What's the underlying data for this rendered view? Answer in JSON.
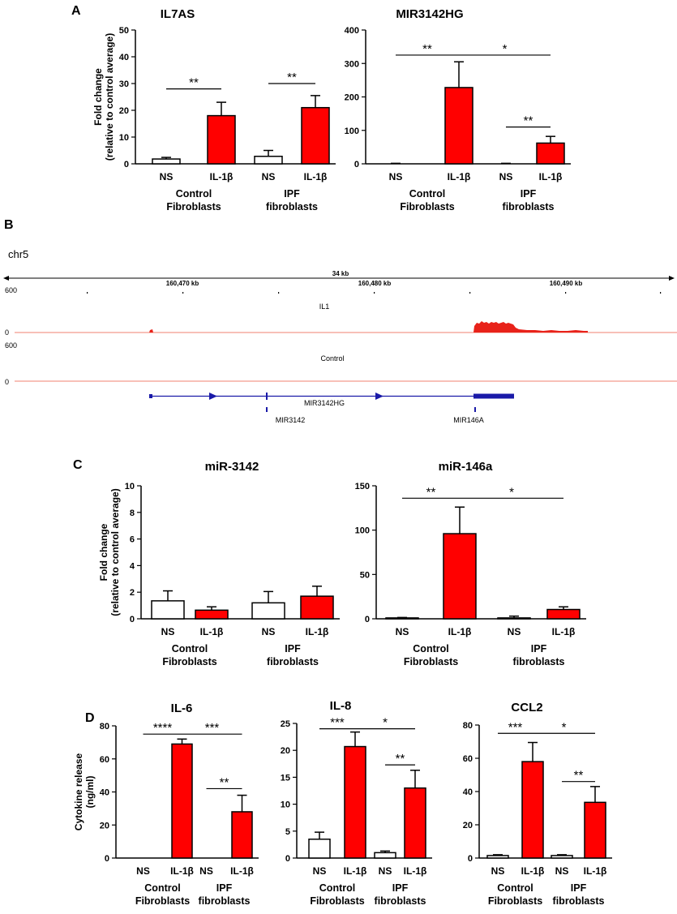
{
  "panel_labels": {
    "a": "A",
    "b": "B",
    "c": "C",
    "d": "D"
  },
  "colors": {
    "il1b_bar": "#ff0000",
    "ns_bar": "#ffffff",
    "genome_track": "#e8221a",
    "baseline": "#f08070",
    "gene": "#1a1aa8"
  },
  "chart_data": [
    {
      "id": "il7as",
      "type": "bar",
      "title": "IL7AS",
      "ylabel": "Fold change (relative to control average)",
      "ylim": [
        0,
        50
      ],
      "yticks": [
        "0",
        "10",
        "20",
        "30",
        "40",
        "50"
      ],
      "categories": [
        "NS",
        "IL-1β",
        "NS",
        "IL-1β"
      ],
      "groups": [
        "Control Fibroblasts",
        "IPF fibroblasts"
      ],
      "group_lines": [
        [
          "Control",
          "Fibroblasts"
        ],
        [
          "IPF",
          "fibroblasts"
        ]
      ],
      "values": [
        1.8,
        18,
        2.8,
        21
      ],
      "errors": [
        0.6,
        5,
        2.2,
        4.5
      ],
      "significance": [
        {
          "from": 0,
          "to": 1,
          "label": "**",
          "level": 28
        },
        {
          "from": 2,
          "to": 3,
          "label": "**",
          "level": 30
        }
      ]
    },
    {
      "id": "mir3142hg",
      "type": "bar",
      "title": "MIR3142HG",
      "ylabel": "",
      "ylim": [
        0,
        400
      ],
      "yticks": [
        "0",
        "100",
        "200",
        "300",
        "400"
      ],
      "categories": [
        "NS",
        "IL-1β",
        "NS",
        "IL-1β"
      ],
      "groups": [
        "Control Fibroblasts",
        "IPF fibroblasts"
      ],
      "group_lines": [
        [
          "Control",
          "Fibroblasts"
        ],
        [
          "IPF",
          "fibroblasts"
        ]
      ],
      "values": [
        1,
        228,
        1,
        62
      ],
      "errors": [
        0.5,
        77,
        0.5,
        20
      ],
      "significance": [
        {
          "from": 0,
          "to": 1,
          "label": "**",
          "level": 325
        },
        {
          "from": 1,
          "to": 3,
          "label": "*",
          "level": 325
        },
        {
          "from": 2,
          "to": 3,
          "label": "**",
          "level": 110
        }
      ]
    },
    {
      "id": "mir3142",
      "type": "bar",
      "title": "miR-3142",
      "ylabel": "Fold change (relative to control average)",
      "ylim": [
        0,
        10
      ],
      "yticks": [
        "0",
        "2",
        "4",
        "6",
        "8",
        "10"
      ],
      "categories": [
        "NS",
        "IL-1β",
        "NS",
        "IL-1β"
      ],
      "groups": [
        "Control Fibroblasts",
        "IPF fibroblasts"
      ],
      "group_lines": [
        [
          "Control",
          "Fibroblasts"
        ],
        [
          "IPF",
          "fibroblasts"
        ]
      ],
      "values": [
        1.35,
        0.65,
        1.2,
        1.7
      ],
      "errors": [
        0.75,
        0.25,
        0.85,
        0.75
      ],
      "significance": []
    },
    {
      "id": "mir146a",
      "type": "bar",
      "title": "miR-146a",
      "ylabel": "",
      "ylim": [
        0,
        150
      ],
      "yticks": [
        "0",
        "50",
        "100",
        "150"
      ],
      "categories": [
        "NS",
        "IL-1β",
        "NS",
        "IL-1β"
      ],
      "groups": [
        "Control Fibroblasts",
        "IPF fibroblasts"
      ],
      "group_lines": [
        [
          "Control",
          "Fibroblasts"
        ],
        [
          "IPF",
          "fibroblasts"
        ]
      ],
      "values": [
        1,
        96,
        1,
        10.5
      ],
      "errors": [
        0.5,
        30,
        2,
        3
      ],
      "significance": [
        {
          "from": 0,
          "to": 1,
          "label": "**",
          "level": 136
        },
        {
          "from": 1,
          "to": 3,
          "label": "*",
          "level": 136
        }
      ]
    },
    {
      "id": "il6",
      "type": "bar",
      "title": "IL-6",
      "ylabel": "Cytokine release (ng/ml)",
      "ylim": [
        0,
        80
      ],
      "yticks": [
        "0",
        "20",
        "40",
        "60",
        "80"
      ],
      "categories": [
        "NS",
        "IL-1β",
        "NS",
        "IL-1β"
      ],
      "groups": [
        "Control Fibroblasts",
        "IPF fibroblasts"
      ],
      "group_lines": [
        [
          "Control",
          "Fibroblasts"
        ],
        [
          "IPF",
          "fibroblasts"
        ]
      ],
      "values": [
        0,
        69,
        0,
        28
      ],
      "errors": [
        0,
        3,
        0,
        10
      ],
      "significance": [
        {
          "from": 0,
          "to": 1,
          "label": "****",
          "level": 75
        },
        {
          "from": 1,
          "to": 3,
          "label": "***",
          "level": 75
        },
        {
          "from": 2,
          "to": 3,
          "label": "**",
          "level": 42
        }
      ]
    },
    {
      "id": "il8",
      "type": "bar",
      "title": "IL-8",
      "ylabel": "",
      "ylim": [
        0,
        25
      ],
      "yticks": [
        "0",
        "5",
        "10",
        "15",
        "20",
        "25"
      ],
      "categories": [
        "NS",
        "IL-1β",
        "NS",
        "IL-1β"
      ],
      "groups": [
        "Control Fibroblasts",
        "IPF fibroblasts"
      ],
      "group_lines": [
        [
          "Control",
          "Fibroblasts"
        ],
        [
          "IPF",
          "fibroblasts"
        ]
      ],
      "values": [
        3.5,
        20.7,
        1.0,
        13.0
      ],
      "errors": [
        1.3,
        2.7,
        0.3,
        3.3
      ],
      "significance": [
        {
          "from": 0,
          "to": 1,
          "label": "***",
          "level": 24
        },
        {
          "from": 1,
          "to": 3,
          "label": "*",
          "level": 24
        },
        {
          "from": 2,
          "to": 3,
          "label": "**",
          "level": 17.3
        }
      ]
    },
    {
      "id": "ccl2",
      "type": "bar",
      "title": "CCL2",
      "ylabel": "",
      "ylim": [
        0,
        80
      ],
      "yticks": [
        "0",
        "20",
        "40",
        "60",
        "80"
      ],
      "categories": [
        "NS",
        "IL-1β",
        "NS",
        "IL-1β"
      ],
      "groups": [
        "Control Fibroblasts",
        "IPF fibroblasts"
      ],
      "group_lines": [
        [
          "Control",
          "Fibroblasts"
        ],
        [
          "IPF",
          "fibroblasts"
        ]
      ],
      "values": [
        1.5,
        58,
        1.5,
        33.5
      ],
      "errors": [
        0.5,
        11.5,
        0.5,
        9.5
      ],
      "significance": [
        {
          "from": 0,
          "to": 1,
          "label": "***",
          "level": 75
        },
        {
          "from": 1,
          "to": 3,
          "label": "*",
          "level": 75
        },
        {
          "from": 2,
          "to": 3,
          "label": "**",
          "level": 46
        }
      ]
    }
  ],
  "genome": {
    "chrom": "chr5",
    "span": "34 kb",
    "ticks": [
      "160,470 kb",
      "160,480 kb",
      "160,490 kb"
    ],
    "tracks": [
      {
        "name": "IL1",
        "scale_max": "600",
        "scale_min": "0"
      },
      {
        "name": "Control",
        "scale_max": "600",
        "scale_min": "0"
      }
    ],
    "genes": [
      "MIR3142HG",
      "MIR3142",
      "MIR146A"
    ]
  }
}
